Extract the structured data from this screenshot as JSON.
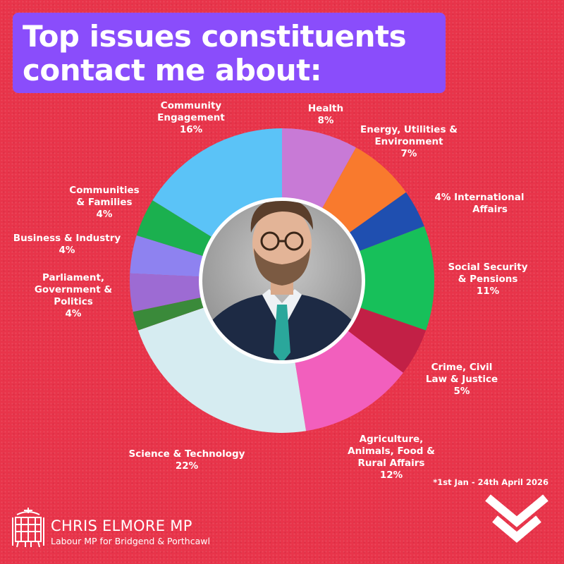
{
  "title": {
    "line1": "Top issues constituents",
    "line2": "contact me about:"
  },
  "colors": {
    "background": "#e8344a",
    "title_box": "#8a4dfb"
  },
  "chart_data": {
    "type": "pie",
    "style": "donut",
    "slices": [
      {
        "lines": [
          "Health",
          "8%"
        ],
        "value": 8,
        "color": "#c87ad6"
      },
      {
        "lines": [
          "Energy, Utilities &",
          "Environment",
          "7%"
        ],
        "value": 7,
        "color": "#f97a2d"
      },
      {
        "lines": [
          "4%  International",
          "Affairs"
        ],
        "value": 4,
        "color": "#1f4fb0"
      },
      {
        "lines": [
          "Social Security",
          "& Pensions",
          "11%"
        ],
        "value": 11,
        "color": "#17c05a"
      },
      {
        "lines": [
          "Crime, Civil",
          "Law & Justice",
          "5%"
        ],
        "value": 5,
        "color": "#c22046"
      },
      {
        "lines": [
          "Agriculture,",
          "Animals, Food &",
          "Rural Affairs",
          "12%"
        ],
        "value": 12,
        "color": "#f25fbd"
      },
      {
        "lines": [
          "Science & Technology",
          "22%"
        ],
        "value": 22,
        "color": "#d6ecf1"
      },
      {
        "lines": [],
        "value": 2,
        "color": "#3a8a3a"
      },
      {
        "lines": [
          "Parliament,",
          "Government &",
          "Politics",
          "4%"
        ],
        "value": 4,
        "color": "#9d6bd3"
      },
      {
        "lines": [
          "Business & Industry",
          "4%"
        ],
        "value": 4,
        "color": "#8e82f0"
      },
      {
        "lines": [
          "Communities",
          "& Families",
          "4%"
        ],
        "value": 4,
        "color": "#1bb04f"
      },
      {
        "lines": [
          "Community",
          "Engagement",
          "16%"
        ],
        "value": 16,
        "color": "#5bc3f7"
      }
    ]
  },
  "date_note": "*1st Jan - 24th April 2026",
  "footer": {
    "name": "CHRIS ELMORE MP",
    "subtitle": "Labour MP for Bridgend & Porthcawl"
  },
  "icons": {
    "logo": "portcullis-icon",
    "scroll": "chevron-down-icon",
    "photo": "mp-portrait"
  }
}
